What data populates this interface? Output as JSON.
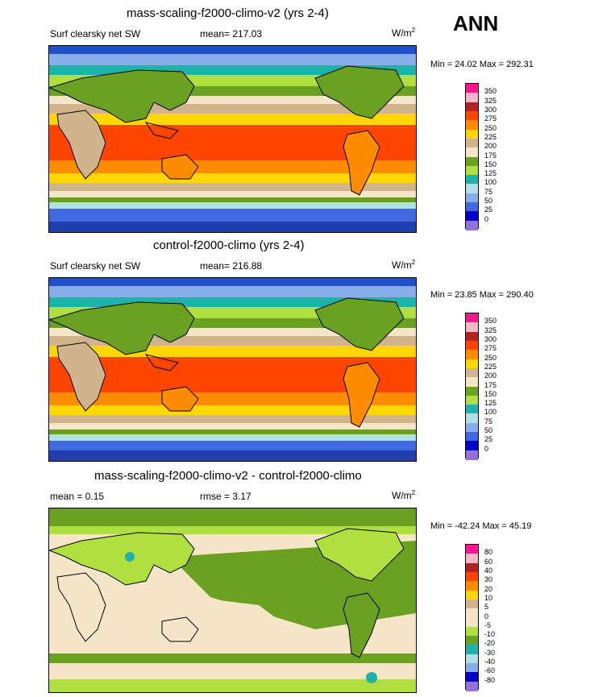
{
  "season": "ANN",
  "panels": [
    {
      "title": "mass-scaling-f2000-climo-v2 (yrs 2-4)",
      "variable": "Surf clearsky net SW",
      "mean_label": "mean= 217.03",
      "units": "W/m",
      "units_exp": "2",
      "minmax": "Min =  24.02 Max = 292.31",
      "colorbar": {
        "labels": [
          "350",
          "325",
          "300",
          "275",
          "250",
          "225",
          "200",
          "175",
          "150",
          "125",
          "100",
          "75",
          "50",
          "25",
          "0"
        ],
        "colors": [
          "#ff1493",
          "#f4b8c8",
          "#b22222",
          "#ff4500",
          "#ff8c00",
          "#ffd700",
          "#d2b48c",
          "#f5e6c8",
          "#6aa121",
          "#b0e040",
          "#20b2aa",
          "#b0e0e6",
          "#87aee8",
          "#4169e1",
          "#0000cd",
          "#9370db"
        ]
      }
    },
    {
      "title": "control-f2000-climo (yrs 2-4)",
      "variable": "Surf clearsky net SW",
      "mean_label": "mean= 216.88",
      "units": "W/m",
      "units_exp": "2",
      "minmax": "Min =  23.85 Max = 290.40",
      "colorbar": {
        "labels": [
          "350",
          "325",
          "300",
          "275",
          "250",
          "225",
          "200",
          "175",
          "150",
          "125",
          "100",
          "75",
          "50",
          "25",
          "0"
        ],
        "colors": [
          "#ff1493",
          "#f4b8c8",
          "#b22222",
          "#ff4500",
          "#ff8c00",
          "#ffd700",
          "#d2b48c",
          "#f5e6c8",
          "#6aa121",
          "#b0e040",
          "#20b2aa",
          "#b0e0e6",
          "#87aee8",
          "#4169e1",
          "#0000cd",
          "#9370db"
        ]
      }
    },
    {
      "title": "mass-scaling-f2000-climo-v2 - control-f2000-climo",
      "mean_label": "mean =   0.15",
      "rmse_label": "rmse =   3.17",
      "units": "W/m",
      "units_exp": "2",
      "minmax": "Min = -42.24 Max =  45.19",
      "colorbar": {
        "labels": [
          "80",
          "60",
          "40",
          "30",
          "20",
          "10",
          "5",
          "0",
          "-5",
          "-10",
          "-20",
          "-30",
          "-40",
          "-60",
          "-80"
        ],
        "colors": [
          "#ff1493",
          "#f4b8c8",
          "#b22222",
          "#ff4500",
          "#ff8c00",
          "#ffd700",
          "#d2b48c",
          "#f5e6c8",
          "#f5e6c8",
          "#b0e040",
          "#6aa121",
          "#20b2aa",
          "#b0e0e6",
          "#87aee8",
          "#0000cd",
          "#9370db"
        ]
      }
    }
  ]
}
